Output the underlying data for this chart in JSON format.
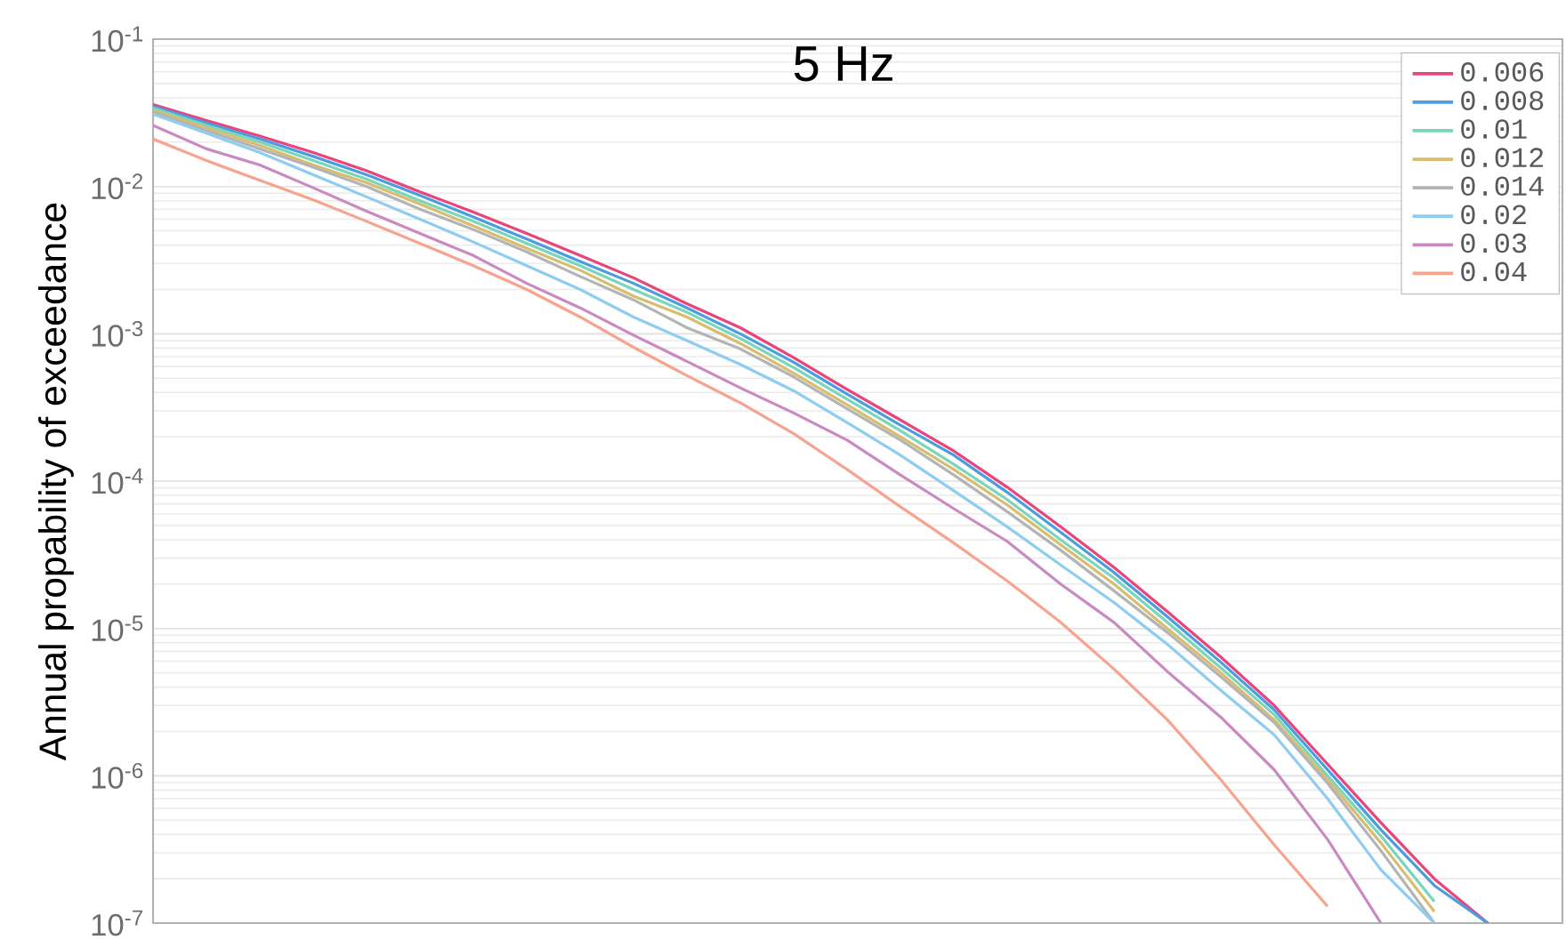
{
  "chart_data": {
    "type": "line",
    "title": "5 Hz",
    "ylabel": "Annual propability of exceedance",
    "categories": [
      null,
      null,
      null,
      null,
      null,
      null,
      null,
      null,
      null,
      null,
      null,
      null,
      null,
      null,
      null,
      null,
      null,
      null,
      null,
      null,
      null,
      null,
      null,
      null,
      null,
      null
    ],
    "series": [
      {
        "name": "0.006",
        "color": "#e8457c",
        "values": [
          0.036,
          0.028,
          0.022,
          0.017,
          0.0128,
          0.0092,
          0.0067,
          0.0048,
          0.0034,
          0.0024,
          0.0016,
          0.0011,
          0.00069,
          0.00042,
          0.00026,
          0.00016,
          9.1e-05,
          4.9e-05,
          2.6e-05,
          1.3e-05,
          6.4e-06,
          3e-06,
          1.2e-06,
          4.8e-07,
          2e-07,
          1e-07
        ]
      },
      {
        "name": "0.008",
        "color": "#4b9de0",
        "values": [
          0.035,
          0.027,
          0.021,
          0.016,
          0.012,
          0.0087,
          0.0062,
          0.0044,
          0.0031,
          0.0022,
          0.0015,
          0.001,
          0.00064,
          0.00039,
          0.00024,
          0.00015,
          8.4e-05,
          4.5e-05,
          2.4e-05,
          1.2e-05,
          5.9e-06,
          2.8e-06,
          1.1e-06,
          4.3e-07,
          1.8e-07,
          1e-07
        ]
      },
      {
        "name": "0.01",
        "color": "#79d6bd",
        "values": [
          0.034,
          0.026,
          0.02,
          0.015,
          0.0112,
          0.008,
          0.0058,
          0.0041,
          0.0029,
          0.002,
          0.0014,
          0.00093,
          0.00059,
          0.00036,
          0.00022,
          0.00013,
          7.5e-05,
          4e-05,
          2.2e-05,
          1.1e-05,
          5.4e-06,
          2.6e-06,
          1e-06,
          3.9e-07,
          1.4e-07,
          null
        ]
      },
      {
        "name": "0.012",
        "color": "#d9bd6e",
        "values": [
          0.033,
          0.025,
          0.019,
          0.014,
          0.0106,
          0.0076,
          0.0054,
          0.0038,
          0.0027,
          0.0018,
          0.0013,
          0.00086,
          0.00054,
          0.00033,
          0.0002,
          0.00012,
          6.9e-05,
          3.7e-05,
          2e-05,
          1e-05,
          5e-06,
          2.4e-06,
          9.4e-07,
          3.5e-07,
          1.2e-07,
          null
        ]
      },
      {
        "name": "0.014",
        "color": "#b4b4b4",
        "values": [
          0.032,
          0.024,
          0.018,
          0.0135,
          0.01,
          0.007,
          0.0051,
          0.0036,
          0.00245,
          0.0017,
          0.0011,
          0.00079,
          0.00051,
          0.00031,
          0.00019,
          0.00011,
          6.2e-05,
          3.4e-05,
          1.8e-05,
          9.4e-06,
          4.7e-06,
          2.3e-06,
          8.9e-07,
          3.1e-07,
          1e-07,
          null
        ]
      },
      {
        "name": "0.02",
        "color": "#8fcdf0",
        "values": [
          0.031,
          0.023,
          0.017,
          0.012,
          0.0085,
          0.006,
          0.0042,
          0.0029,
          0.002,
          0.0013,
          0.0009,
          0.00062,
          0.00041,
          0.00025,
          0.00015,
          8.6e-05,
          4.9e-05,
          2.7e-05,
          1.5e-05,
          7.8e-06,
          3.8e-06,
          1.9e-06,
          7e-07,
          2.3e-07,
          1e-07,
          null
        ]
      },
      {
        "name": "0.03",
        "color": "#c98ac2",
        "values": [
          0.026,
          0.018,
          0.014,
          0.0098,
          0.0068,
          0.0048,
          0.0034,
          0.0022,
          0.0015,
          0.00098,
          0.00065,
          0.00043,
          0.00029,
          0.00019,
          0.00011,
          6.5e-05,
          3.9e-05,
          2e-05,
          1.1e-05,
          5.1e-06,
          2.5e-06,
          1.1e-06,
          3.7e-07,
          1e-07,
          null,
          null
        ]
      },
      {
        "name": "0.04",
        "color": "#f6a48f",
        "values": [
          0.021,
          0.015,
          0.011,
          0.0081,
          0.0058,
          0.0041,
          0.0029,
          0.002,
          0.0013,
          0.00081,
          0.00052,
          0.00034,
          0.00021,
          0.00012,
          6.7e-05,
          3.8e-05,
          2.1e-05,
          1.1e-05,
          5.3e-06,
          2.4e-06,
          9.4e-07,
          3.4e-07,
          1.3e-07,
          null,
          null,
          null
        ]
      }
    ],
    "ylim": [
      1e-07,
      0.1
    ],
    "yticks": [
      {
        "value": 1e-07,
        "label": "10$^{-7}$"
      },
      {
        "value": 1e-06,
        "label": "10$^{-6}$"
      },
      {
        "value": 1e-05,
        "label": "10$^{-5}$"
      },
      {
        "value": 0.0001,
        "label": "10$^{-4}$"
      },
      {
        "value": 0.001,
        "label": "10$^{-3}$"
      },
      {
        "value": 0.01,
        "label": "10$^{-2}$"
      },
      {
        "value": 0.1,
        "label": "10$^{-1}$"
      }
    ],
    "grid": "y",
    "legend": "top right",
    "log": true,
    "tick_labels": "y"
  }
}
